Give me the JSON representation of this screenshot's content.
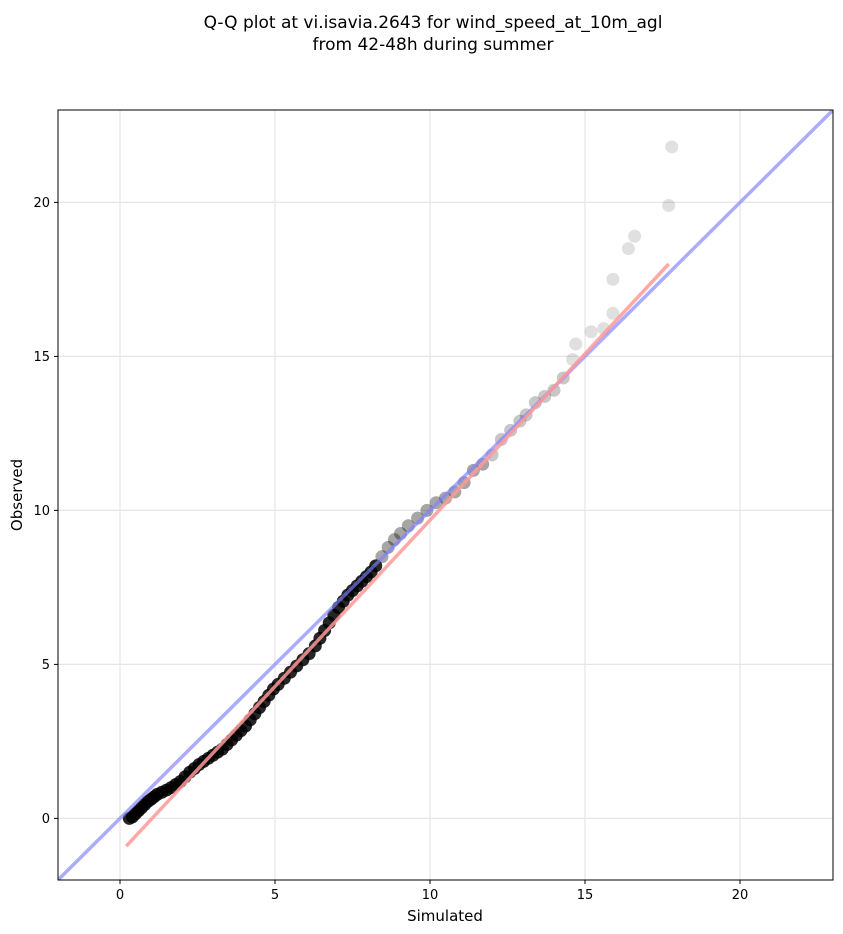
{
  "chart_data": {
    "type": "scatter",
    "title": "Q-Q plot at vi.isavia.2643 for wind_speed_at_10m_agl\nfrom 42-48h during summer",
    "xlabel": "Simulated",
    "ylabel": "Observed",
    "xlim": [
      -2,
      23
    ],
    "ylim": [
      -2,
      23
    ],
    "xticks": [
      "0",
      "5",
      "10",
      "15",
      "20"
    ],
    "yticks": [
      "0",
      "5",
      "10",
      "15",
      "20"
    ],
    "xtick_values": [
      0,
      5,
      10,
      15,
      20
    ],
    "ytick_values": [
      0,
      5,
      10,
      15,
      20
    ],
    "grid": true,
    "series": [
      {
        "kind": "quantiles",
        "color": "#000000",
        "points": [
          [
            0.3,
            0.0
          ],
          [
            0.4,
            0.05
          ],
          [
            0.5,
            0.15
          ],
          [
            0.6,
            0.25
          ],
          [
            0.7,
            0.35
          ],
          [
            0.8,
            0.45
          ],
          [
            0.9,
            0.55
          ],
          [
            1.0,
            0.62
          ],
          [
            1.1,
            0.7
          ],
          [
            1.2,
            0.78
          ],
          [
            1.35,
            0.85
          ],
          [
            1.5,
            0.92
          ],
          [
            1.65,
            1.0
          ],
          [
            1.8,
            1.1
          ],
          [
            1.95,
            1.2
          ],
          [
            2.1,
            1.35
          ],
          [
            2.25,
            1.5
          ],
          [
            2.4,
            1.62
          ],
          [
            2.55,
            1.75
          ],
          [
            2.7,
            1.85
          ],
          [
            2.85,
            1.95
          ],
          [
            3.0,
            2.05
          ],
          [
            3.15,
            2.15
          ],
          [
            3.3,
            2.25
          ],
          [
            3.45,
            2.4
          ],
          [
            3.6,
            2.55
          ],
          [
            3.75,
            2.7
          ],
          [
            3.9,
            2.85
          ],
          [
            4.05,
            3.0
          ],
          [
            4.2,
            3.2
          ],
          [
            4.35,
            3.4
          ],
          [
            4.5,
            3.6
          ],
          [
            4.65,
            3.8
          ],
          [
            4.8,
            4.0
          ],
          [
            4.95,
            4.2
          ],
          [
            5.1,
            4.35
          ],
          [
            5.3,
            4.55
          ],
          [
            5.5,
            4.75
          ],
          [
            5.7,
            4.95
          ],
          [
            5.9,
            5.15
          ],
          [
            6.1,
            5.35
          ],
          [
            6.3,
            5.6
          ],
          [
            6.45,
            5.85
          ],
          [
            6.6,
            6.1
          ],
          [
            6.75,
            6.35
          ],
          [
            6.9,
            6.6
          ],
          [
            7.05,
            6.85
          ],
          [
            7.2,
            7.05
          ],
          [
            7.35,
            7.25
          ],
          [
            7.5,
            7.4
          ],
          [
            7.65,
            7.55
          ],
          [
            7.8,
            7.7
          ],
          [
            7.95,
            7.85
          ],
          [
            8.1,
            8.0
          ],
          [
            8.25,
            8.2
          ],
          [
            8.45,
            8.5
          ],
          [
            8.65,
            8.8
          ],
          [
            8.85,
            9.05
          ],
          [
            9.05,
            9.25
          ],
          [
            9.3,
            9.5
          ],
          [
            9.6,
            9.75
          ],
          [
            9.9,
            10.0
          ],
          [
            10.2,
            10.25
          ],
          [
            10.5,
            10.4
          ],
          [
            10.8,
            10.6
          ],
          [
            11.1,
            10.9
          ],
          [
            11.4,
            11.3
          ],
          [
            11.7,
            11.5
          ],
          [
            12.0,
            11.8
          ],
          [
            12.3,
            12.3
          ],
          [
            12.6,
            12.6
          ],
          [
            12.9,
            12.9
          ],
          [
            13.1,
            13.1
          ],
          [
            13.4,
            13.5
          ],
          [
            13.7,
            13.7
          ],
          [
            14.0,
            13.9
          ],
          [
            14.3,
            14.3
          ],
          [
            14.6,
            14.9
          ],
          [
            14.7,
            15.4
          ],
          [
            15.2,
            15.8
          ],
          [
            15.6,
            15.9
          ],
          [
            15.9,
            16.4
          ],
          [
            15.9,
            17.5
          ],
          [
            16.4,
            18.5
          ],
          [
            16.6,
            18.9
          ],
          [
            17.7,
            19.9
          ],
          [
            17.8,
            21.8
          ]
        ]
      },
      {
        "kind": "reference-1:1",
        "color": "#7f7fff",
        "points": [
          [
            -2,
            -2
          ],
          [
            23,
            23
          ]
        ]
      },
      {
        "kind": "fitted",
        "color": "#ff9999",
        "points": [
          [
            0.2,
            -0.9
          ],
          [
            17.7,
            18.0
          ]
        ]
      }
    ]
  }
}
